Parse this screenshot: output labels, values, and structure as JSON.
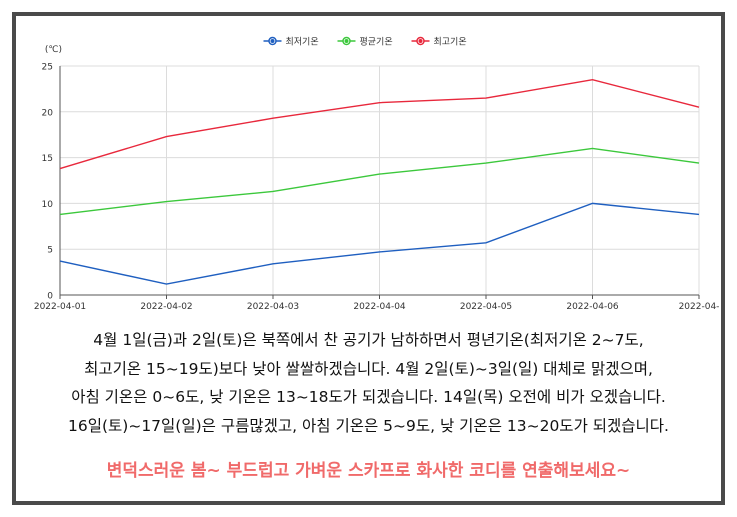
{
  "chart_data": {
    "type": "line",
    "ylabel": "(℃)",
    "ylim": [
      0,
      25
    ],
    "yticks": [
      0,
      5,
      10,
      15,
      20,
      25
    ],
    "categories": [
      "2022-04-01",
      "2022-04-02",
      "2022-04-03",
      "2022-04-04",
      "2022-04-05",
      "2022-04-06",
      "2022-04-"
    ],
    "grid": true,
    "legend_position": "top-center",
    "series": [
      {
        "name": "최저기온",
        "color": "#1f5fc0",
        "values": [
          3.7,
          1.2,
          3.4,
          4.7,
          5.7,
          10.0,
          8.8
        ]
      },
      {
        "name": "평균기온",
        "color": "#3cc83c",
        "values": [
          8.8,
          10.2,
          11.3,
          13.2,
          14.4,
          16.0,
          14.4
        ]
      },
      {
        "name": "최고기온",
        "color": "#e8283c",
        "values": [
          13.8,
          17.3,
          19.3,
          21.0,
          21.5,
          23.5,
          20.5
        ]
      }
    ]
  },
  "description": {
    "lines": [
      "4월 1일(금)과 2일(토)은 북쪽에서 찬 공기가 남하하면서 평년기온(최저기온 2~7도,",
      "최고기온 15~19도)보다 낮아 쌀쌀하겠습니다. 4월 2일(토)~3일(일) 대체로 맑겠으며,",
      "아침 기온은 0~6도, 낮 기온은 13~18도가 되겠습니다. 14일(목) 오전에 비가 오겠습니다.",
      "16일(토)~17일(일)은 구름많겠고, 아침 기온은 5~9도, 낮 기온은 13~20도가 되겠습니다."
    ]
  },
  "promo": {
    "text": "변덕스러운 봄~ 부드럽고 가벼운 스카프로 화사한 코디를 연출해보세요~",
    "color": "#f06a6a"
  }
}
